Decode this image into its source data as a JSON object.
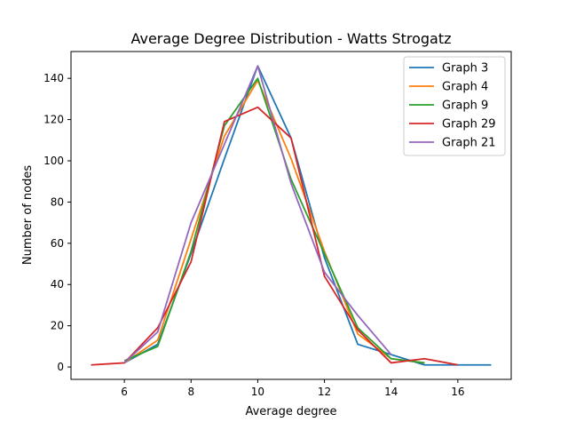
{
  "chart_data": {
    "type": "line",
    "title": "Average Degree Distribution - Watts Strogatz",
    "xlabel": "Average degree",
    "ylabel": "Number of nodes",
    "xlim": [
      4.4,
      17.6
    ],
    "ylim": [
      -6,
      153
    ],
    "xticks": [
      6,
      8,
      10,
      12,
      14,
      16
    ],
    "yticks": [
      0,
      20,
      40,
      60,
      80,
      100,
      120,
      140
    ],
    "grid": false,
    "legend_position": "top-right",
    "series": [
      {
        "name": "Graph 3",
        "color": "#1f77b4",
        "x": [
          6,
          7,
          8,
          9,
          10,
          11,
          12,
          13,
          14,
          15,
          16,
          17
        ],
        "y": [
          2,
          11,
          55,
          101,
          146,
          111,
          53,
          11,
          6,
          1,
          1,
          1
        ]
      },
      {
        "name": "Graph 4",
        "color": "#ff7f0e",
        "x": [
          6,
          7,
          8,
          9,
          10,
          11,
          12,
          13,
          14,
          15
        ],
        "y": [
          2,
          13,
          62,
          112,
          139,
          101,
          56,
          16,
          4,
          2
        ]
      },
      {
        "name": "Graph 9",
        "color": "#2ca02c",
        "x": [
          6,
          7,
          8,
          9,
          10,
          11,
          12,
          13,
          14,
          15
        ],
        "y": [
          3,
          10,
          56,
          117,
          140,
          91,
          55,
          19,
          4,
          2
        ]
      },
      {
        "name": "Graph 29",
        "color": "#d62728",
        "x": [
          5,
          6,
          7,
          8,
          9,
          10,
          11,
          12,
          13,
          14,
          15,
          16
        ],
        "y": [
          1,
          2,
          19,
          51,
          119,
          126,
          111,
          44,
          18,
          2,
          4,
          1
        ]
      },
      {
        "name": "Graph 21",
        "color": "#9467bd",
        "x": [
          6,
          7,
          8,
          9,
          10,
          11,
          12,
          13,
          14
        ],
        "y": [
          2,
          17,
          70,
          108,
          146,
          89,
          46,
          25,
          6
        ]
      }
    ]
  }
}
